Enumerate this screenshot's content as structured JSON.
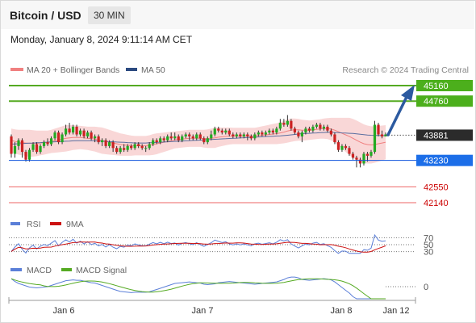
{
  "header": {
    "title": "Bitcoin / USD",
    "timeframe": "30 MIN"
  },
  "datetime": "Monday, January 8, 2024 9:11:14 AM CET",
  "legend": {
    "bb_label": "MA 20 + Bollinger Bands",
    "ma50_label": "MA 50"
  },
  "attribution": "Research © 2024 Trading Central",
  "colors": {
    "up": "#22aa22",
    "down": "#cc2222",
    "wick": "#333333",
    "bb_fill": "#f9d7d7",
    "ma20": "#f08080",
    "ma50": "#5a6ea0",
    "resistance": "#55aa22",
    "pivot": "#1155dd",
    "support": "#ee6666",
    "arrow": "#2c5aa0",
    "rsi": "#5b7fd8",
    "rsi_ma": "#cc1111",
    "macd": "#5b7fd8",
    "macd_signal": "#55aa22"
  },
  "levels": [
    {
      "value": "45160",
      "kind": "resistance",
      "style": "filled"
    },
    {
      "value": "44760",
      "kind": "resistance",
      "style": "filled"
    },
    {
      "value": "43881",
      "kind": "current",
      "style": "dark"
    },
    {
      "value": "43230",
      "kind": "pivot",
      "style": "filled"
    },
    {
      "value": "42550",
      "kind": "support",
      "style": "text"
    },
    {
      "value": "42140",
      "kind": "support",
      "style": "text"
    }
  ],
  "rsi_panel": {
    "legend": [
      "RSI",
      "9MA"
    ],
    "ticks": [
      "70",
      "50",
      "30"
    ]
  },
  "macd_panel": {
    "legend": [
      "MACD",
      "MACD Signal"
    ],
    "ticks": [
      "0"
    ]
  },
  "xaxis": {
    "labels": [
      "Jan 6",
      "Jan 7",
      "Jan 8",
      "Jan 12"
    ]
  },
  "chart_data": {
    "type": "candlestick",
    "symbol": "Bitcoin / USD",
    "interval": "30 MIN",
    "ylim": [
      41900,
      45500
    ],
    "candles": [
      [
        43850,
        43400,
        43900,
        43300
      ],
      [
        43400,
        43600,
        43700,
        43300
      ],
      [
        43600,
        43750,
        43800,
        43500
      ],
      [
        43750,
        43450,
        43800,
        43300
      ],
      [
        43450,
        43250,
        43500,
        43200
      ],
      [
        43250,
        43500,
        43550,
        43200
      ],
      [
        43500,
        43650,
        43700,
        43450
      ],
      [
        43650,
        43450,
        43700,
        43400
      ],
      [
        43450,
        43600,
        43650,
        43400
      ],
      [
        43600,
        43700,
        43750,
        43550
      ],
      [
        43700,
        43650,
        43800,
        43600
      ],
      [
        43650,
        43800,
        43850,
        43600
      ],
      [
        43800,
        43950,
        44000,
        43750
      ],
      [
        43950,
        43700,
        44000,
        43650
      ],
      [
        43700,
        43900,
        43950,
        43650
      ],
      [
        43900,
        44050,
        44150,
        43850
      ],
      [
        44050,
        43950,
        44200,
        43900
      ],
      [
        43950,
        44100,
        44150,
        43900
      ],
      [
        44100,
        43900,
        44150,
        43850
      ],
      [
        43900,
        44000,
        44050,
        43850
      ],
      [
        44000,
        43850,
        44050,
        43800
      ],
      [
        43850,
        43950,
        44000,
        43800
      ],
      [
        43950,
        43800,
        44000,
        43750
      ],
      [
        43800,
        43850,
        43900,
        43700
      ],
      [
        43850,
        43700,
        43900,
        43650
      ],
      [
        43700,
        43750,
        43800,
        43600
      ],
      [
        43750,
        43600,
        43800,
        43550
      ],
      [
        43600,
        43700,
        43750,
        43550
      ],
      [
        43700,
        43550,
        43750,
        43450
      ],
      [
        43550,
        43450,
        43600,
        43400
      ],
      [
        43450,
        43550,
        43600,
        43400
      ],
      [
        43550,
        43500,
        43650,
        43450
      ],
      [
        43500,
        43600,
        43650,
        43450
      ],
      [
        43600,
        43550,
        43650,
        43500
      ],
      [
        43550,
        43650,
        43700,
        43500
      ],
      [
        43650,
        43600,
        43700,
        43550
      ],
      [
        43600,
        43550,
        43650,
        43500
      ],
      [
        43550,
        43550,
        43600,
        43450
      ],
      [
        43550,
        43650,
        43700,
        43500
      ],
      [
        43650,
        43750,
        43800,
        43600
      ],
      [
        43750,
        43700,
        43800,
        43650
      ],
      [
        43700,
        43800,
        43850,
        43650
      ],
      [
        43800,
        43750,
        43850,
        43700
      ],
      [
        43750,
        43850,
        43900,
        43700
      ],
      [
        43850,
        43800,
        43950,
        43750
      ],
      [
        43800,
        43850,
        43950,
        43750
      ],
      [
        43850,
        43750,
        43900,
        43700
      ],
      [
        43750,
        43850,
        43900,
        43700
      ],
      [
        43850,
        43900,
        43950,
        43800
      ],
      [
        43900,
        43850,
        43950,
        43750
      ],
      [
        43850,
        43800,
        43900,
        43750
      ],
      [
        43800,
        43900,
        43950,
        43750
      ],
      [
        43900,
        43800,
        43950,
        43750
      ],
      [
        43800,
        43700,
        43850,
        43650
      ],
      [
        43700,
        43800,
        43850,
        43650
      ],
      [
        43800,
        43900,
        44000,
        43750
      ],
      [
        43900,
        44050,
        44100,
        43850
      ],
      [
        44050,
        44000,
        44100,
        43950
      ],
      [
        44000,
        43950,
        44050,
        43900
      ],
      [
        43950,
        44000,
        44050,
        43900
      ],
      [
        44000,
        43900,
        44050,
        43850
      ],
      [
        43900,
        43850,
        43950,
        43800
      ],
      [
        43850,
        43900,
        43950,
        43800
      ],
      [
        43900,
        43850,
        43950,
        43800
      ],
      [
        43850,
        43900,
        43950,
        43800
      ],
      [
        43900,
        43850,
        43950,
        43750
      ],
      [
        43850,
        43800,
        43900,
        43750
      ],
      [
        43800,
        43900,
        43950,
        43750
      ],
      [
        43900,
        43950,
        44000,
        43850
      ],
      [
        43950,
        43900,
        44000,
        43850
      ],
      [
        43900,
        43950,
        44000,
        43850
      ],
      [
        43950,
        44000,
        44050,
        43900
      ],
      [
        44000,
        43950,
        44050,
        43900
      ],
      [
        43950,
        44050,
        44100,
        43900
      ],
      [
        44050,
        44200,
        44300,
        44000
      ],
      [
        44200,
        44150,
        44300,
        44100
      ],
      [
        44150,
        44250,
        44400,
        44100
      ],
      [
        44250,
        44050,
        44300,
        44000
      ],
      [
        44050,
        43950,
        44100,
        43900
      ],
      [
        43950,
        43850,
        44000,
        43800
      ],
      [
        43850,
        43950,
        44000,
        43700
      ],
      [
        43950,
        44050,
        44100,
        43900
      ],
      [
        44050,
        44000,
        44100,
        43950
      ],
      [
        44000,
        44100,
        44150,
        43950
      ],
      [
        44100,
        44150,
        44200,
        44050
      ],
      [
        44150,
        44050,
        44200,
        44000
      ],
      [
        44050,
        44100,
        44150,
        44000
      ],
      [
        44100,
        44000,
        44150,
        43950
      ],
      [
        44000,
        43900,
        44050,
        43850
      ],
      [
        43900,
        43700,
        43950,
        43650
      ],
      [
        43700,
        43500,
        43750,
        43450
      ],
      [
        43500,
        43600,
        43650,
        43450
      ],
      [
        43600,
        43550,
        43650,
        43500
      ],
      [
        43550,
        43400,
        43600,
        43350
      ],
      [
        43400,
        43300,
        43450,
        43250
      ],
      [
        43300,
        43250,
        43350,
        43050
      ],
      [
        43250,
        43150,
        43300,
        43050
      ],
      [
        43150,
        43400,
        43450,
        43100
      ],
      [
        43400,
        43350,
        43450,
        43200
      ],
      [
        43350,
        43450,
        43500,
        43300
      ],
      [
        43450,
        44150,
        44250,
        43400
      ],
      [
        44150,
        43900,
        44200,
        43850
      ],
      [
        43900,
        43850,
        44000,
        43800
      ],
      [
        43850,
        43900,
        43950,
        43850
      ]
    ],
    "ma20": [
      43750,
      43720,
      43700,
      43690,
      43680,
      43670,
      43670,
      43670,
      43680,
      43690,
      43700,
      43720,
      43740,
      43760,
      43780,
      43800,
      43810,
      43820,
      43820,
      43820,
      43810,
      43800,
      43790,
      43780,
      43760,
      43740,
      43720,
      43700,
      43680,
      43660,
      43640,
      43630,
      43620,
      43610,
      43610,
      43610,
      43610,
      43610,
      43620,
      43640,
      43660,
      43680,
      43700,
      43720,
      43740,
      43760,
      43770,
      43780,
      43790,
      43800,
      43800,
      43800,
      43800,
      43790,
      43790,
      43800,
      43810,
      43830,
      43840,
      43850,
      43860,
      43860,
      43860,
      43860,
      43860,
      43860,
      43860,
      43860,
      43870,
      43880,
      43890,
      43900,
      43910,
      43920,
      43940,
      43960,
      43990,
      44010,
      44020,
      44020,
      44010,
      44010,
      44010,
      44020,
      44030,
      44040,
      44050,
      44050,
      44040,
      44010,
      43970,
      43930,
      43890,
      43850,
      43800,
      43750,
      43700,
      43660,
      43640,
      43630,
      43640,
      43660,
      43680,
      43700
    ],
    "ma50": [
      43650,
      43655,
      43660,
      43665,
      43670,
      43675,
      43680,
      43685,
      43690,
      43695,
      43700,
      43705,
      43710,
      43715,
      43720,
      43725,
      43730,
      43735,
      43740,
      43740,
      43740,
      43740,
      43740,
      43735,
      43730,
      43725,
      43720,
      43715,
      43710,
      43705,
      43700,
      43695,
      43690,
      43685,
      43680,
      43680,
      43680,
      43680,
      43685,
      43690,
      43695,
      43700,
      43705,
      43710,
      43715,
      43720,
      43725,
      43730,
      43735,
      43740,
      43745,
      43750,
      43755,
      43760,
      43765,
      43770,
      43775,
      43780,
      43785,
      43790,
      43795,
      43800,
      43805,
      43810,
      43815,
      43820,
      43825,
      43830,
      43835,
      43840,
      43845,
      43850,
      43855,
      43860,
      43865,
      43870,
      43880,
      43890,
      43900,
      43910,
      43920,
      43925,
      43930,
      43935,
      43940,
      43945,
      43950,
      43955,
      43955,
      43950,
      43945,
      43940,
      43935,
      43930,
      43925,
      43915,
      43905,
      43895,
      43885,
      43880,
      43875,
      43872,
      43870,
      43868
    ],
    "bb_width": [
      300,
      310,
      320,
      330,
      340,
      350,
      340,
      330,
      320,
      310,
      300,
      300,
      310,
      320,
      330,
      340,
      330,
      320,
      310,
      300,
      300,
      300,
      310,
      320,
      330,
      340,
      330,
      320,
      310,
      300,
      290,
      280,
      270,
      260,
      250,
      250,
      250,
      250,
      260,
      270,
      270,
      260,
      250,
      240,
      230,
      220,
      220,
      220,
      220,
      220,
      220,
      220,
      220,
      230,
      240,
      250,
      260,
      250,
      240,
      230,
      220,
      210,
      210,
      210,
      210,
      210,
      210,
      210,
      220,
      230,
      240,
      250,
      260,
      270,
      280,
      290,
      300,
      300,
      290,
      280,
      270,
      260,
      250,
      250,
      250,
      250,
      260,
      270,
      290,
      320,
      360,
      400,
      440,
      480,
      500,
      510,
      510,
      500,
      490,
      480,
      470,
      460,
      450,
      440
    ],
    "levels": {
      "resistance": [
        45160,
        44760
      ],
      "current": 43881,
      "pivot": 43230,
      "support": [
        42550,
        42140
      ]
    },
    "rsi": {
      "ylim": [
        0,
        100
      ],
      "reference": [
        70,
        50,
        30
      ]
    },
    "macd": {
      "reference": 0
    }
  }
}
